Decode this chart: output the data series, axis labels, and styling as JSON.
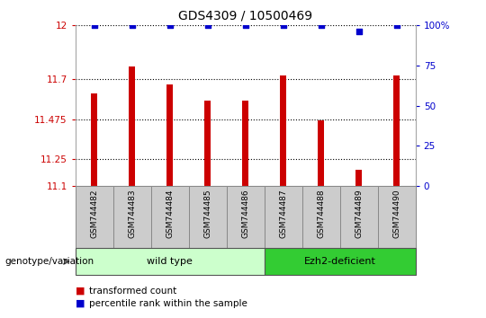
{
  "title": "GDS4309 / 10500469",
  "samples": [
    "GSM744482",
    "GSM744483",
    "GSM744484",
    "GSM744485",
    "GSM744486",
    "GSM744487",
    "GSM744488",
    "GSM744489",
    "GSM744490"
  ],
  "transformed_counts": [
    11.62,
    11.77,
    11.67,
    11.58,
    11.58,
    11.72,
    11.47,
    11.19,
    11.72
  ],
  "percentile_ranks": [
    100,
    100,
    100,
    100,
    100,
    100,
    100,
    96,
    100
  ],
  "ylim_left": [
    11.1,
    12.0
  ],
  "yticks_left": [
    11.1,
    11.25,
    11.475,
    11.7,
    12.0
  ],
  "ytick_labels_left": [
    "11.1",
    "11.25",
    "11.475",
    "11.7",
    "12"
  ],
  "ylim_right": [
    0,
    100
  ],
  "yticks_right": [
    0,
    25,
    50,
    75,
    100
  ],
  "ytick_labels_right": [
    "0",
    "25",
    "50",
    "75",
    "100%"
  ],
  "bar_color": "#cc0000",
  "dot_color": "#0000cc",
  "grid_color": "#000000",
  "groups": [
    {
      "label": "wild type",
      "start": 0,
      "end": 5,
      "color": "#ccffcc"
    },
    {
      "label": "Ezh2-deficient",
      "start": 5,
      "end": 9,
      "color": "#33cc33"
    }
  ],
  "legend_items": [
    {
      "label": "transformed count",
      "color": "#cc0000"
    },
    {
      "label": "percentile rank within the sample",
      "color": "#0000cc"
    }
  ],
  "annotation_label": "genotype/variation",
  "tick_bg_color": "#cccccc",
  "plot_bg_color": "#ffffff",
  "spine_color": "#aaaaaa"
}
